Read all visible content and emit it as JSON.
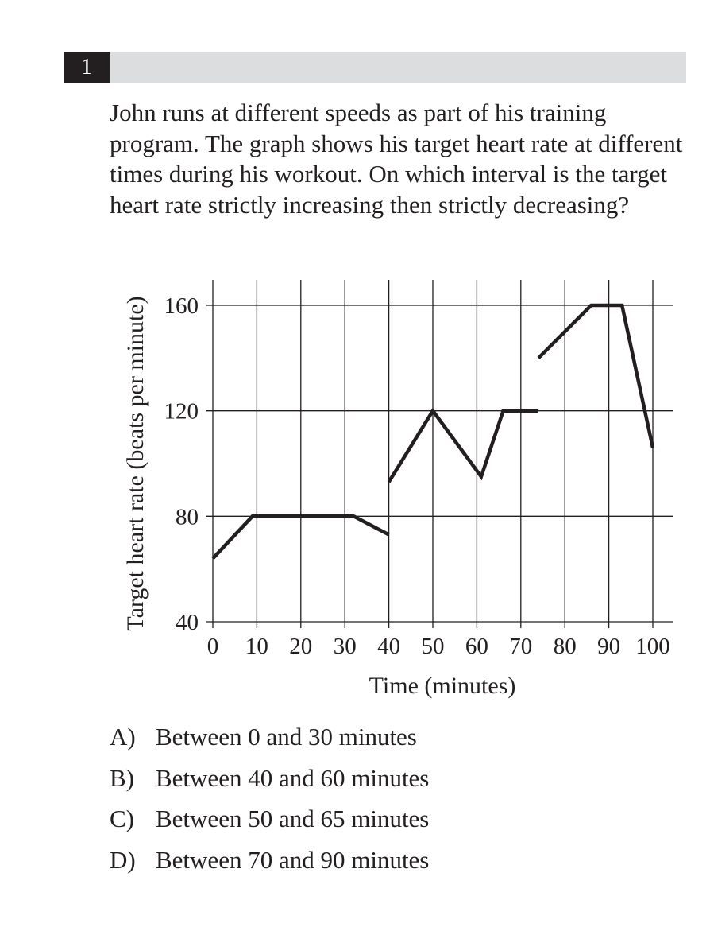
{
  "question": {
    "number": "1",
    "text": "John runs at different speeds as part of his training program.  The graph shows his target heart rate at different times during his workout.  On which interval is the target heart rate strictly increasing then strictly decreasing?"
  },
  "choices": [
    {
      "letter": "A)",
      "text": "Between 0 and 30 minutes"
    },
    {
      "letter": "B)",
      "text": "Between 40 and 60 minutes"
    },
    {
      "letter": "C)",
      "text": "Between 50 and 65 minutes"
    },
    {
      "letter": "D)",
      "text": "Between 70 and 90 minutes"
    }
  ],
  "colors": {
    "header_bar": "#dcdddf",
    "number_box": "#231f20",
    "line": "#231f20"
  },
  "chart_data": {
    "type": "line",
    "xlabel": "Time (minutes)",
    "ylabel": "Target heart rate (beats per minute)",
    "xlim": [
      0,
      100
    ],
    "ylim": [
      40,
      160
    ],
    "xticks": [
      0,
      10,
      20,
      30,
      40,
      50,
      60,
      70,
      80,
      90,
      100
    ],
    "yticks": [
      40,
      80,
      120,
      160
    ],
    "grid": true,
    "series": [
      {
        "x": [
          0,
          9,
          32,
          40
        ],
        "y": [
          64,
          80,
          80,
          73
        ]
      },
      {
        "x": [
          40,
          50,
          61,
          66,
          74
        ],
        "y": [
          93,
          120,
          95,
          120,
          120
        ]
      },
      {
        "x": [
          74,
          86,
          93,
          100
        ],
        "y": [
          140,
          160,
          160,
          106
        ]
      }
    ]
  }
}
